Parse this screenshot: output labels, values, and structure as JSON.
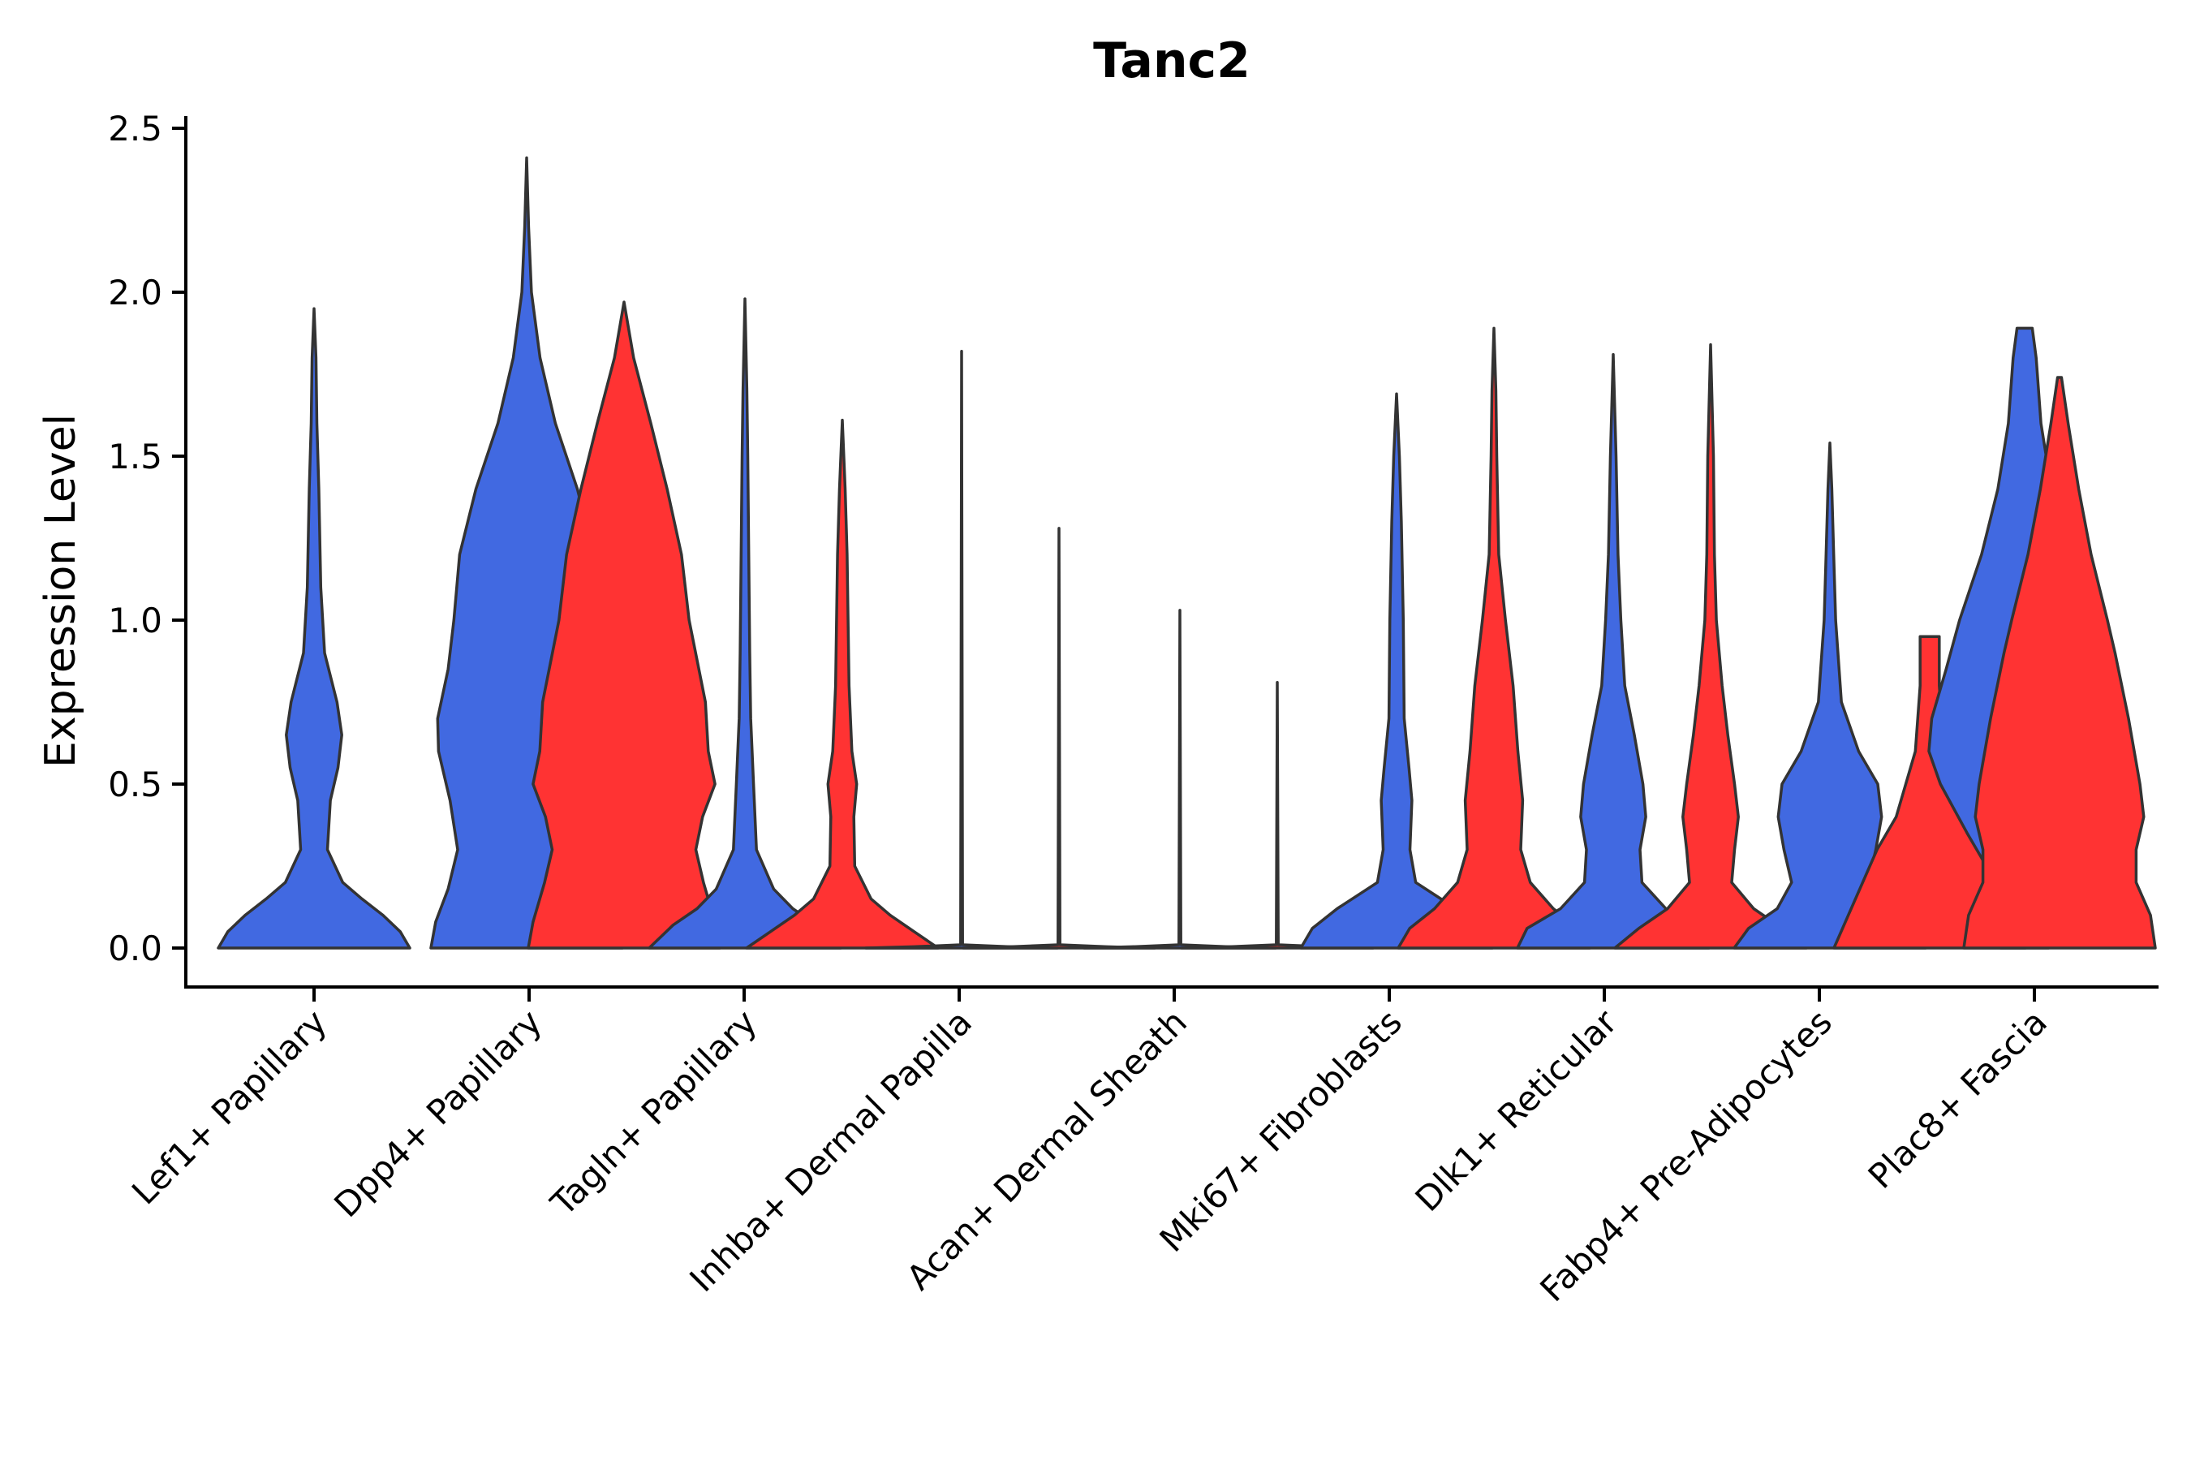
{
  "chart_data": {
    "type": "violin",
    "title": "Tanc2",
    "xlabel": "",
    "ylabel": "Expression Level",
    "ylim": [
      -0.12,
      2.55
    ],
    "yticks": [
      "0.0",
      "0.5",
      "1.0",
      "1.5",
      "2.0",
      "2.5"
    ],
    "ytick_values": [
      0.0,
      0.5,
      1.0,
      1.5,
      2.0,
      2.5
    ],
    "grid": false,
    "legend": "none",
    "series_colors": {
      "blue": "#4169E1",
      "red": "#FF3333"
    },
    "outline_color": "#333333",
    "categories": [
      {
        "label": "Lef1+ Papillary",
        "violins": [
          {
            "color": "blue",
            "max": 1.95,
            "profile": [
              [
                0,
                1.0
              ],
              [
                0.05,
                0.9
              ],
              [
                0.1,
                0.72
              ],
              [
                0.15,
                0.5
              ],
              [
                0.2,
                0.3
              ],
              [
                0.3,
                0.14
              ],
              [
                0.45,
                0.17
              ],
              [
                0.55,
                0.25
              ],
              [
                0.65,
                0.29
              ],
              [
                0.75,
                0.24
              ],
              [
                0.9,
                0.11
              ],
              [
                1.1,
                0.07
              ],
              [
                1.4,
                0.05
              ],
              [
                1.6,
                0.03
              ],
              [
                1.8,
                0.02
              ],
              [
                1.95,
                0
              ]
            ]
          }
        ]
      },
      {
        "label": "Dpp4+ Papillary",
        "violins": [
          {
            "color": "blue",
            "max": 2.41,
            "profile": [
              [
                0,
                1.0
              ],
              [
                0.08,
                0.95
              ],
              [
                0.18,
                0.82
              ],
              [
                0.3,
                0.72
              ],
              [
                0.45,
                0.8
              ],
              [
                0.6,
                0.92
              ],
              [
                0.7,
                0.93
              ],
              [
                0.85,
                0.82
              ],
              [
                1.0,
                0.76
              ],
              [
                1.2,
                0.7
              ],
              [
                1.4,
                0.53
              ],
              [
                1.6,
                0.3
              ],
              [
                1.8,
                0.14
              ],
              [
                2.0,
                0.05
              ],
              [
                2.2,
                0.02
              ],
              [
                2.41,
                0
              ]
            ]
          }
        ]
      },
      {
        "label": "Tagln+ Papillary",
        "violins": [
          {
            "color": "red",
            "max": 1.97,
            "profile": [
              [
                0,
                1.0
              ],
              [
                0.08,
                0.95
              ],
              [
                0.2,
                0.83
              ],
              [
                0.3,
                0.75
              ],
              [
                0.4,
                0.82
              ],
              [
                0.5,
                0.95
              ],
              [
                0.6,
                0.88
              ],
              [
                0.75,
                0.85
              ],
              [
                1.0,
                0.68
              ],
              [
                1.2,
                0.6
              ],
              [
                1.4,
                0.45
              ],
              [
                1.6,
                0.28
              ],
              [
                1.8,
                0.1
              ],
              [
                1.97,
                0
              ]
            ]
          },
          {
            "color": "blue",
            "max": 1.98,
            "profile": [
              [
                0,
                1.0
              ],
              [
                0.07,
                0.75
              ],
              [
                0.12,
                0.5
              ],
              [
                0.18,
                0.3
              ],
              [
                0.3,
                0.12
              ],
              [
                0.5,
                0.09
              ],
              [
                0.7,
                0.06
              ],
              [
                0.9,
                0.05
              ],
              [
                1.2,
                0.04
              ],
              [
                1.5,
                0.03
              ],
              [
                1.7,
                0.02
              ],
              [
                1.98,
                0
              ]
            ]
          }
        ]
      },
      {
        "label": "Inhba+ Dermal Papilla",
        "violins": [
          {
            "color": "red",
            "max": 1.61,
            "profile": [
              [
                0,
                1.0
              ],
              [
                0.05,
                0.75
              ],
              [
                0.1,
                0.5
              ],
              [
                0.15,
                0.3
              ],
              [
                0.25,
                0.13
              ],
              [
                0.4,
                0.12
              ],
              [
                0.5,
                0.15
              ],
              [
                0.6,
                0.1
              ],
              [
                0.8,
                0.07
              ],
              [
                1.0,
                0.06
              ],
              [
                1.2,
                0.05
              ],
              [
                1.4,
                0.03
              ],
              [
                1.61,
                0
              ]
            ]
          },
          {
            "color": "blue",
            "max": 1.82,
            "profile": [
              [
                0,
                1.0
              ],
              [
                0.004,
                0.5
              ],
              [
                0.01,
                0.01
              ],
              [
                1.82,
                0
              ]
            ]
          }
        ]
      },
      {
        "label": "Acan+ Dermal Sheath",
        "violins": [
          {
            "color": "red",
            "max": 1.28,
            "profile": [
              [
                0,
                1.0
              ],
              [
                0.004,
                0.5
              ],
              [
                0.01,
                0.01
              ],
              [
                1.28,
                0
              ]
            ]
          },
          {
            "color": "blue",
            "max": 1.03,
            "profile": [
              [
                0,
                1.0
              ],
              [
                0.004,
                0.5
              ],
              [
                0.01,
                0.01
              ],
              [
                1.03,
                0
              ]
            ]
          }
        ]
      },
      {
        "label": "Mki67+ Fibroblasts",
        "violins": [
          {
            "color": "red",
            "max": 0.81,
            "profile": [
              [
                0,
                1.0
              ],
              [
                0.004,
                0.5
              ],
              [
                0.01,
                0.01
              ],
              [
                0.81,
                0
              ]
            ]
          },
          {
            "color": "blue",
            "max": 1.69,
            "profile": [
              [
                0,
                1.0
              ],
              [
                0.06,
                0.88
              ],
              [
                0.12,
                0.62
              ],
              [
                0.2,
                0.2
              ],
              [
                0.3,
                0.14
              ],
              [
                0.45,
                0.16
              ],
              [
                0.55,
                0.13
              ],
              [
                0.7,
                0.08
              ],
              [
                1.0,
                0.07
              ],
              [
                1.3,
                0.05
              ],
              [
                1.5,
                0.03
              ],
              [
                1.69,
                0
              ]
            ]
          }
        ]
      },
      {
        "label": "Dlk1+ Reticular",
        "violins": [
          {
            "color": "red",
            "max": 1.89,
            "profile": [
              [
                0,
                1.0
              ],
              [
                0.06,
                0.88
              ],
              [
                0.12,
                0.62
              ],
              [
                0.2,
                0.38
              ],
              [
                0.3,
                0.28
              ],
              [
                0.45,
                0.3
              ],
              [
                0.6,
                0.25
              ],
              [
                0.8,
                0.2
              ],
              [
                1.0,
                0.12
              ],
              [
                1.2,
                0.05
              ],
              [
                1.5,
                0.03
              ],
              [
                1.7,
                0.02
              ],
              [
                1.89,
                0
              ]
            ]
          },
          {
            "color": "blue",
            "max": 1.81,
            "profile": [
              [
                0,
                1.0
              ],
              [
                0.06,
                0.9
              ],
              [
                0.12,
                0.55
              ],
              [
                0.2,
                0.3
              ],
              [
                0.3,
                0.28
              ],
              [
                0.4,
                0.34
              ],
              [
                0.5,
                0.31
              ],
              [
                0.65,
                0.22
              ],
              [
                0.8,
                0.12
              ],
              [
                1.0,
                0.08
              ],
              [
                1.2,
                0.05
              ],
              [
                1.5,
                0.03
              ],
              [
                1.81,
                0
              ]
            ]
          }
        ]
      },
      {
        "label": "Fabp4+ Pre-Adipocytes",
        "violins": [
          {
            "color": "red",
            "max": 1.84,
            "profile": [
              [
                0,
                1.0
              ],
              [
                0.06,
                0.75
              ],
              [
                0.12,
                0.45
              ],
              [
                0.2,
                0.22
              ],
              [
                0.3,
                0.25
              ],
              [
                0.4,
                0.29
              ],
              [
                0.5,
                0.25
              ],
              [
                0.65,
                0.18
              ],
              [
                0.8,
                0.12
              ],
              [
                1.0,
                0.06
              ],
              [
                1.2,
                0.04
              ],
              [
                1.5,
                0.03
              ],
              [
                1.84,
                0
              ]
            ]
          },
          {
            "color": "blue",
            "max": 1.54,
            "profile": [
              [
                0,
                1.0
              ],
              [
                0.06,
                0.85
              ],
              [
                0.12,
                0.55
              ],
              [
                0.2,
                0.4
              ],
              [
                0.3,
                0.48
              ],
              [
                0.4,
                0.54
              ],
              [
                0.5,
                0.5
              ],
              [
                0.6,
                0.3
              ],
              [
                0.75,
                0.12
              ],
              [
                1.0,
                0.06
              ],
              [
                1.2,
                0.04
              ],
              [
                1.4,
                0.02
              ],
              [
                1.54,
                0
              ]
            ]
          }
        ]
      },
      {
        "label": "Plac8+ Fascia",
        "violins": [
          {
            "color": "red",
            "max": 0.95,
            "profile": [
              [
                0,
                1.0
              ],
              [
                0.1,
                0.85
              ],
              [
                0.2,
                0.7
              ],
              [
                0.3,
                0.55
              ],
              [
                0.4,
                0.35
              ],
              [
                0.5,
                0.25
              ],
              [
                0.6,
                0.15
              ],
              [
                0.8,
                0.1
              ],
              [
                0.95,
                0.1
              ]
            ]
          },
          {
            "color": "blue",
            "max": 1.89,
            "profile": [
              [
                0,
                0.25
              ],
              [
                0.1,
                0.24
              ],
              [
                0.2,
                0.3
              ],
              [
                0.35,
                0.6
              ],
              [
                0.5,
                0.88
              ],
              [
                0.6,
                1.0
              ],
              [
                0.7,
                0.97
              ],
              [
                0.85,
                0.82
              ],
              [
                1.0,
                0.68
              ],
              [
                1.2,
                0.45
              ],
              [
                1.4,
                0.28
              ],
              [
                1.6,
                0.17
              ],
              [
                1.8,
                0.12
              ],
              [
                1.89,
                0.08
              ]
            ]
          },
          {
            "color": "red",
            "max": 1.74,
            "profile": [
              [
                0,
                1.0
              ],
              [
                0.1,
                0.95
              ],
              [
                0.2,
                0.8
              ],
              [
                0.3,
                0.8
              ],
              [
                0.4,
                0.88
              ],
              [
                0.5,
                0.84
              ],
              [
                0.7,
                0.72
              ],
              [
                0.9,
                0.58
              ],
              [
                1.0,
                0.5
              ],
              [
                1.2,
                0.33
              ],
              [
                1.4,
                0.2
              ],
              [
                1.6,
                0.09
              ],
              [
                1.74,
                0.02
              ]
            ]
          }
        ]
      }
    ]
  }
}
